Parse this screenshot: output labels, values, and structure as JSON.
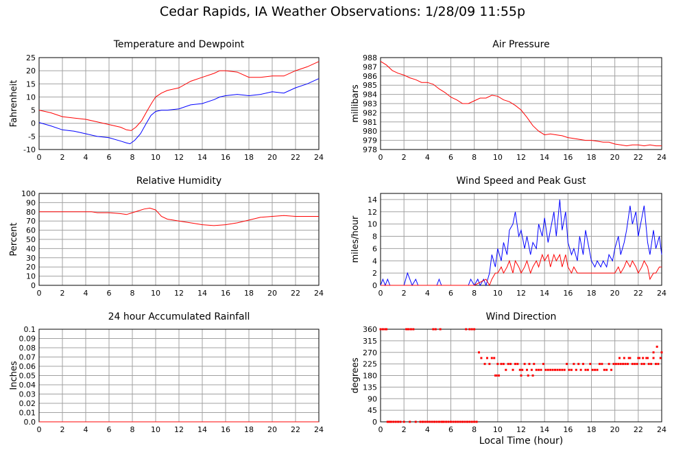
{
  "title": "Cedar Rapids, IA Weather Observations: 1/28/09 11:55p",
  "xaxis_title": "Local Time (hour)",
  "colors": {
    "red": "#ff0000",
    "blue": "#0000ff",
    "grid": "#a0a0a0",
    "frame": "#000000"
  },
  "chart_data": [
    {
      "id": "temperature",
      "type": "line",
      "title": "Temperature and Dewpoint",
      "ylabel": "Fahrenheit",
      "xlim": [
        0,
        24
      ],
      "ylim": [
        -10,
        25
      ],
      "xticks": [
        0,
        2,
        4,
        6,
        8,
        10,
        12,
        14,
        16,
        18,
        20,
        22,
        24
      ],
      "yticks": [
        -10,
        -5,
        0,
        5,
        10,
        15,
        20,
        25
      ],
      "ytick_labels": [
        "-10",
        "-5",
        "0",
        "5",
        "10",
        "15",
        "20",
        "25"
      ],
      "grid": true,
      "series": [
        {
          "color": "#ff0000",
          "x": [
            0,
            1,
            2,
            3,
            4,
            5,
            6,
            7,
            7.5,
            7.9,
            8.3,
            8.8,
            9.3,
            9.7,
            10,
            10.5,
            11,
            12,
            13,
            14,
            15,
            15.5,
            16,
            17,
            18,
            19,
            20,
            21,
            22,
            23,
            24
          ],
          "y": [
            5,
            4,
            2.5,
            2,
            1.5,
            0.5,
            -0.5,
            -1.5,
            -2.5,
            -2.8,
            -1.5,
            1,
            5,
            8,
            10,
            11.5,
            12.5,
            13.5,
            16,
            17.5,
            19,
            20,
            20,
            19.5,
            17.5,
            17.5,
            18,
            18,
            20,
            21.5,
            23.5
          ]
        },
        {
          "color": "#0000ff",
          "x": [
            0,
            1,
            2,
            3,
            4,
            5,
            6,
            7,
            7.5,
            7.8,
            8.2,
            8.7,
            9.2,
            9.6,
            10,
            10.5,
            11,
            12,
            13,
            14,
            15,
            15.5,
            16,
            17,
            18,
            19,
            20,
            21,
            22,
            23,
            24
          ],
          "y": [
            0.3,
            -1,
            -2.5,
            -3,
            -4,
            -5,
            -5.5,
            -6.8,
            -7.5,
            -7.8,
            -6.5,
            -4,
            0,
            3,
            4.5,
            5,
            5,
            5.5,
            7,
            7.5,
            9,
            10,
            10.5,
            11,
            10.5,
            11,
            12,
            11.5,
            13.5,
            15,
            17
          ]
        }
      ]
    },
    {
      "id": "pressure",
      "type": "line",
      "title": "Air Pressure",
      "ylabel": "millibars",
      "xlim": [
        0,
        24
      ],
      "ylim": [
        978,
        988
      ],
      "xticks": [
        0,
        2,
        4,
        6,
        8,
        10,
        12,
        14,
        16,
        18,
        20,
        22,
        24
      ],
      "yticks": [
        978,
        979,
        980,
        981,
        982,
        983,
        984,
        985,
        986,
        987,
        988
      ],
      "ytick_labels": [
        "978",
        "979",
        "980",
        "981",
        "982",
        "983",
        "984",
        "985",
        "986",
        "987",
        "988"
      ],
      "grid": true,
      "series": [
        {
          "color": "#ff0000",
          "x": [
            0,
            0.5,
            1,
            1.5,
            2,
            2.5,
            3,
            3.5,
            4,
            4.5,
            5,
            5.5,
            6,
            6.5,
            7,
            7.5,
            8,
            8.5,
            9,
            9.5,
            10,
            10.5,
            11,
            11.5,
            12,
            12.5,
            13,
            13.5,
            14,
            14.5,
            15,
            15.5,
            16,
            16.5,
            17,
            17.5,
            18,
            18.5,
            19,
            19.5,
            20,
            20.5,
            21,
            21.5,
            22,
            22.5,
            23,
            23.5,
            24
          ],
          "y": [
            987.6,
            987.2,
            986.6,
            986.3,
            986.1,
            985.8,
            985.6,
            985.3,
            985.3,
            985.1,
            984.6,
            984.2,
            983.7,
            983.4,
            983.0,
            983.0,
            983.3,
            983.6,
            983.6,
            983.9,
            983.8,
            983.4,
            983.2,
            982.8,
            982.3,
            981.5,
            980.6,
            980.0,
            979.6,
            979.7,
            979.6,
            979.5,
            979.3,
            979.2,
            979.1,
            979.0,
            979.0,
            978.9,
            978.8,
            978.8,
            978.6,
            978.5,
            978.4,
            978.5,
            978.5,
            978.4,
            978.5,
            978.4,
            978.4
          ]
        }
      ]
    },
    {
      "id": "humidity",
      "type": "line",
      "title": "Relative Humidity",
      "ylabel": "Percent",
      "xlim": [
        0,
        24
      ],
      "ylim": [
        0,
        100
      ],
      "xticks": [
        0,
        2,
        4,
        6,
        8,
        10,
        12,
        14,
        16,
        18,
        20,
        22,
        24
      ],
      "yticks": [
        0,
        10,
        20,
        30,
        40,
        50,
        60,
        70,
        80,
        90,
        100
      ],
      "ytick_labels": [
        "0",
        "10",
        "20",
        "30",
        "40",
        "50",
        "60",
        "70",
        "80",
        "90",
        "100"
      ],
      "grid": true,
      "series": [
        {
          "color": "#ff0000",
          "x": [
            0,
            1,
            2,
            3,
            4,
            4.5,
            5,
            6,
            7,
            7.5,
            8,
            8.5,
            9,
            9.5,
            10,
            10.5,
            11,
            12,
            13,
            14,
            15,
            16,
            17,
            18,
            19,
            20,
            21,
            22,
            23,
            24
          ],
          "y": [
            80,
            80,
            80,
            80,
            80,
            80,
            79,
            79,
            78,
            77,
            79,
            81,
            83,
            84,
            82,
            75,
            72,
            70,
            68,
            66,
            65,
            66,
            68,
            71,
            74,
            75,
            76,
            75,
            75,
            75
          ]
        }
      ]
    },
    {
      "id": "wind",
      "type": "line",
      "title": "Wind Speed and Peak Gust",
      "ylabel": "miles/hour",
      "xlim": [
        0,
        24
      ],
      "ylim": [
        0,
        15
      ],
      "xticks": [
        0,
        2,
        4,
        6,
        8,
        10,
        12,
        14,
        16,
        18,
        20,
        22,
        24
      ],
      "yticks": [
        0,
        2,
        4,
        6,
        8,
        10,
        12,
        14
      ],
      "ytick_labels": [
        "0",
        "2",
        "4",
        "6",
        "8",
        "10",
        "12",
        "14"
      ],
      "grid": true,
      "series": [
        {
          "color": "#0000ff",
          "x": [
            0,
            0.2,
            0.4,
            0.6,
            0.8,
            1,
            2,
            2.3,
            2.5,
            2.7,
            3,
            3.2,
            4,
            4.8,
            5,
            5.2,
            6,
            7,
            7.5,
            7.7,
            8,
            8.3,
            8.5,
            8.8,
            9,
            9.3,
            9.5,
            9.8,
            10,
            10.3,
            10.5,
            10.8,
            11,
            11.3,
            11.5,
            11.8,
            12,
            12.3,
            12.5,
            12.8,
            13,
            13.3,
            13.5,
            13.8,
            14,
            14.3,
            14.5,
            14.8,
            15,
            15.3,
            15.5,
            15.8,
            16,
            16.3,
            16.5,
            16.8,
            17,
            17.3,
            17.5,
            17.8,
            18,
            18.3,
            18.5,
            18.8,
            19,
            19.3,
            19.5,
            19.8,
            20,
            20.3,
            20.5,
            20.8,
            21,
            21.3,
            21.5,
            21.8,
            22,
            22.3,
            22.5,
            22.8,
            23,
            23.3,
            23.5,
            23.8,
            24
          ],
          "y": [
            0,
            1,
            0,
            1,
            0,
            0,
            0,
            2,
            1,
            0,
            1,
            0,
            0,
            0,
            1,
            0,
            0,
            0,
            0,
            1,
            0,
            1,
            0,
            1,
            0,
            2,
            5,
            3,
            6,
            4,
            7,
            5,
            9,
            10,
            12,
            8,
            9,
            6,
            8,
            5,
            7,
            6,
            10,
            8,
            11,
            7,
            9,
            12,
            8,
            14,
            9,
            12,
            7,
            5,
            6,
            4,
            8,
            5,
            9,
            6,
            4,
            3,
            4,
            3,
            4,
            3,
            5,
            4,
            6,
            8,
            5,
            7,
            9,
            13,
            10,
            12,
            8,
            11,
            13,
            7,
            5,
            9,
            6,
            8,
            5
          ]
        },
        {
          "color": "#ff0000",
          "x": [
            0,
            8,
            9,
            9.3,
            9.5,
            9.8,
            10,
            10.3,
            10.5,
            10.8,
            11,
            11.3,
            11.5,
            11.8,
            12,
            12.3,
            12.5,
            12.8,
            13,
            13.3,
            13.5,
            13.8,
            14,
            14.3,
            14.5,
            14.8,
            15,
            15.3,
            15.5,
            15.8,
            16,
            16.3,
            16.5,
            16.8,
            17,
            17.5,
            18,
            18.5,
            19,
            19.5,
            20,
            20.3,
            20.5,
            20.8,
            21,
            21.3,
            21.5,
            21.8,
            22,
            22.3,
            22.5,
            22.8,
            23,
            23.3,
            23.5,
            23.8,
            24
          ],
          "y": [
            0,
            0,
            1,
            0,
            1,
            2,
            2,
            3,
            2,
            3,
            4,
            2,
            4,
            3,
            2,
            3,
            4,
            2,
            3,
            4,
            3,
            5,
            4,
            5,
            3,
            5,
            4,
            5,
            3,
            5,
            3,
            2,
            3,
            2,
            2,
            2,
            2,
            2,
            2,
            2,
            2,
            3,
            2,
            3,
            4,
            3,
            4,
            3,
            2,
            3,
            4,
            3,
            1,
            2,
            2,
            3,
            3
          ]
        }
      ]
    },
    {
      "id": "rainfall",
      "type": "line",
      "title": "24 hour Accumulated Rainfall",
      "ylabel": "Inches",
      "xlim": [
        0,
        24
      ],
      "ylim": [
        0,
        0.1
      ],
      "xticks": [
        0,
        2,
        4,
        6,
        8,
        10,
        12,
        14,
        16,
        18,
        20,
        22,
        24
      ],
      "yticks": [
        0,
        0.01,
        0.02,
        0.03,
        0.04,
        0.05,
        0.06,
        0.07,
        0.08,
        0.09,
        0.1
      ],
      "ytick_labels": [
        "0.0",
        "0.01",
        "0.02",
        "0.03",
        "0.04",
        "0.05",
        "0.06",
        "0.07",
        "0.08",
        "0.09",
        "0.1"
      ],
      "grid": true,
      "series": [
        {
          "color": "#ff0000",
          "x": [
            0,
            24
          ],
          "y": [
            0,
            0
          ]
        }
      ]
    },
    {
      "id": "direction",
      "type": "scatter",
      "title": "Wind Direction",
      "ylabel": "degrees",
      "xlim": [
        0,
        24
      ],
      "ylim": [
        0,
        360
      ],
      "xticks": [
        0,
        2,
        4,
        6,
        8,
        10,
        12,
        14,
        16,
        18,
        20,
        22,
        24
      ],
      "yticks": [
        0,
        45,
        90,
        135,
        180,
        225,
        270,
        315,
        360
      ],
      "ytick_labels": [
        "0",
        "45",
        "90",
        "135",
        "180",
        "225",
        "270",
        "315",
        "360"
      ],
      "grid": true,
      "series": [
        {
          "color": "#ff0000",
          "x": [
            0,
            0.2,
            0.4,
            0.6,
            0.8,
            0.5,
            0.7,
            0.9,
            1.1,
            1.3,
            1.5,
            1.7,
            2.0,
            2.2,
            2.4,
            2.6,
            2.8,
            3.0,
            2.3,
            2.5,
            3.4,
            3.6,
            3.8,
            4.0,
            4.2,
            4.4,
            4.6,
            4.8,
            5.0,
            5.2,
            5.4,
            5.6,
            5.8,
            6.0,
            6.2,
            6.4,
            6.6,
            6.8,
            7.0,
            7.2,
            7.4,
            7.6,
            7.8,
            8.0,
            4.5,
            4.7,
            5.1,
            5.3,
            7.3,
            7.6,
            7.8,
            8.0,
            8.2,
            8.4,
            8.6,
            8.9,
            9.1,
            9.3,
            9.5,
            9.7,
            9.9,
            10.0,
            10.3,
            10.5,
            10.7,
            10.9,
            11.1,
            11.3,
            11.5,
            11.7,
            11.9,
            12.1,
            12.3,
            12.5,
            12.7,
            12.9,
            13.1,
            13.3,
            13.5,
            13.7,
            13.9,
            14.1,
            14.3,
            14.5,
            14.7,
            14.9,
            15.1,
            15.3,
            15.5,
            15.7,
            15.9,
            16.1,
            16.3,
            16.5,
            16.7,
            16.9,
            17.1,
            17.3,
            17.5,
            17.7,
            17.9,
            18.1,
            18.3,
            18.5,
            18.7,
            18.9,
            19.1,
            19.3,
            19.5,
            19.7,
            19.9,
            20.1,
            20.3,
            20.5,
            20.7,
            20.9,
            21.1,
            21.3,
            21.5,
            21.7,
            21.9,
            22.1,
            22.3,
            22.5,
            22.7,
            22.9,
            23.1,
            23.3,
            23.5,
            23.7,
            23.9,
            12.0,
            12.6,
            13.0,
            9.8,
            10.1,
            20.4,
            20.8,
            21.2,
            22.0,
            22.4,
            22.8,
            23.3,
            23.6,
            24.0
          ],
          "y": [
            360,
            360,
            360,
            0,
            0,
            360,
            0,
            0,
            0,
            0,
            0,
            0,
            0,
            360,
            360,
            360,
            360,
            0,
            360,
            0,
            0,
            0,
            0,
            0,
            0,
            0,
            0,
            0,
            0,
            0,
            0,
            0,
            0,
            0,
            0,
            0,
            0,
            0,
            0,
            0,
            0,
            0,
            0,
            0,
            360,
            360,
            360,
            0,
            360,
            360,
            360,
            360,
            0,
            270,
            248,
            225,
            248,
            225,
            248,
            248,
            180,
            225,
            225,
            225,
            202,
            225,
            225,
            202,
            225,
            225,
            202,
            202,
            225,
            202,
            225,
            202,
            225,
            202,
            202,
            202,
            225,
            202,
            202,
            202,
            202,
            202,
            202,
            202,
            202,
            202,
            225,
            202,
            202,
            225,
            202,
            225,
            202,
            225,
            202,
            202,
            225,
            202,
            202,
            202,
            225,
            225,
            202,
            202,
            225,
            202,
            225,
            225,
            225,
            225,
            225,
            225,
            225,
            248,
            225,
            225,
            225,
            248,
            225,
            225,
            248,
            225,
            225,
            248,
            225,
            225,
            248,
            180,
            180,
            180,
            180,
            180,
            248,
            248,
            248,
            248,
            248,
            248,
            270,
            292,
            270
          ]
        }
      ]
    }
  ]
}
